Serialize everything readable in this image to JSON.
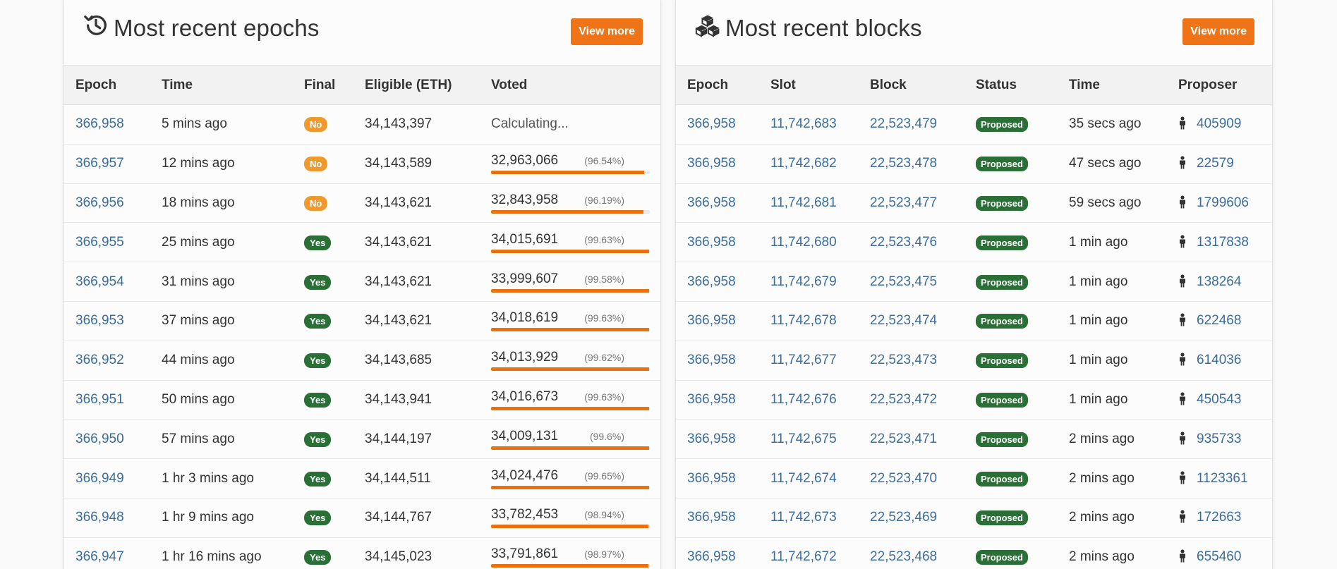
{
  "colors": {
    "accent": "#ef7417",
    "link": "#3a6d9e",
    "badge_yes": "#2a6f35",
    "badge_no": "#f09a2e",
    "progress": "#e7720f"
  },
  "epochs": {
    "title": "Most recent epochs",
    "icon": "history-icon",
    "view_more": "View more",
    "columns": [
      "Epoch",
      "Time",
      "Final",
      "Eligible (ETH)",
      "Voted"
    ],
    "rows": [
      {
        "epoch": "366,958",
        "time": "5 mins ago",
        "final": "No",
        "eligible": "34,143,397",
        "voted": "Calculating...",
        "pct": "",
        "progress": null
      },
      {
        "epoch": "366,957",
        "time": "12 mins ago",
        "final": "No",
        "eligible": "34,143,589",
        "voted": "32,963,066",
        "pct": "(96.54%)",
        "progress": 96.54
      },
      {
        "epoch": "366,956",
        "time": "18 mins ago",
        "final": "No",
        "eligible": "34,143,621",
        "voted": "32,843,958",
        "pct": "(96.19%)",
        "progress": 96.19
      },
      {
        "epoch": "366,955",
        "time": "25 mins ago",
        "final": "Yes",
        "eligible": "34,143,621",
        "voted": "34,015,691",
        "pct": "(99.63%)",
        "progress": 99.63
      },
      {
        "epoch": "366,954",
        "time": "31 mins ago",
        "final": "Yes",
        "eligible": "34,143,621",
        "voted": "33,999,607",
        "pct": "(99.58%)",
        "progress": 99.58
      },
      {
        "epoch": "366,953",
        "time": "37 mins ago",
        "final": "Yes",
        "eligible": "34,143,621",
        "voted": "34,018,619",
        "pct": "(99.63%)",
        "progress": 99.63
      },
      {
        "epoch": "366,952",
        "time": "44 mins ago",
        "final": "Yes",
        "eligible": "34,143,685",
        "voted": "34,013,929",
        "pct": "(99.62%)",
        "progress": 99.62
      },
      {
        "epoch": "366,951",
        "time": "50 mins ago",
        "final": "Yes",
        "eligible": "34,143,941",
        "voted": "34,016,673",
        "pct": "(99.63%)",
        "progress": 99.63
      },
      {
        "epoch": "366,950",
        "time": "57 mins ago",
        "final": "Yes",
        "eligible": "34,144,197",
        "voted": "34,009,131",
        "pct": "(99.6%)",
        "progress": 99.6
      },
      {
        "epoch": "366,949",
        "time": "1 hr 3 mins ago",
        "final": "Yes",
        "eligible": "34,144,511",
        "voted": "34,024,476",
        "pct": "(99.65%)",
        "progress": 99.65
      },
      {
        "epoch": "366,948",
        "time": "1 hr 9 mins ago",
        "final": "Yes",
        "eligible": "34,144,767",
        "voted": "33,782,453",
        "pct": "(98.94%)",
        "progress": 98.94
      },
      {
        "epoch": "366,947",
        "time": "1 hr 16 mins ago",
        "final": "Yes",
        "eligible": "34,145,023",
        "voted": "33,791,861",
        "pct": "(98.97%)",
        "progress": 98.97
      }
    ]
  },
  "blocks": {
    "title": "Most recent blocks",
    "icon": "cubes-icon",
    "view_more": "View more",
    "columns": [
      "Epoch",
      "Slot",
      "Block",
      "Status",
      "Time",
      "Proposer"
    ],
    "rows": [
      {
        "epoch": "366,958",
        "slot": "11,742,683",
        "block": "22,523,479",
        "status": "Proposed",
        "time": "35 secs ago",
        "proposer": "405909"
      },
      {
        "epoch": "366,958",
        "slot": "11,742,682",
        "block": "22,523,478",
        "status": "Proposed",
        "time": "47 secs ago",
        "proposer": "22579"
      },
      {
        "epoch": "366,958",
        "slot": "11,742,681",
        "block": "22,523,477",
        "status": "Proposed",
        "time": "59 secs ago",
        "proposer": "1799606"
      },
      {
        "epoch": "366,958",
        "slot": "11,742,680",
        "block": "22,523,476",
        "status": "Proposed",
        "time": "1 min ago",
        "proposer": "1317838"
      },
      {
        "epoch": "366,958",
        "slot": "11,742,679",
        "block": "22,523,475",
        "status": "Proposed",
        "time": "1 min ago",
        "proposer": "138264"
      },
      {
        "epoch": "366,958",
        "slot": "11,742,678",
        "block": "22,523,474",
        "status": "Proposed",
        "time": "1 min ago",
        "proposer": "622468"
      },
      {
        "epoch": "366,958",
        "slot": "11,742,677",
        "block": "22,523,473",
        "status": "Proposed",
        "time": "1 min ago",
        "proposer": "614036"
      },
      {
        "epoch": "366,958",
        "slot": "11,742,676",
        "block": "22,523,472",
        "status": "Proposed",
        "time": "1 min ago",
        "proposer": "450543"
      },
      {
        "epoch": "366,958",
        "slot": "11,742,675",
        "block": "22,523,471",
        "status": "Proposed",
        "time": "2 mins ago",
        "proposer": "935733"
      },
      {
        "epoch": "366,958",
        "slot": "11,742,674",
        "block": "22,523,470",
        "status": "Proposed",
        "time": "2 mins ago",
        "proposer": "1123361"
      },
      {
        "epoch": "366,958",
        "slot": "11,742,673",
        "block": "22,523,469",
        "status": "Proposed",
        "time": "2 mins ago",
        "proposer": "172663"
      },
      {
        "epoch": "366,958",
        "slot": "11,742,672",
        "block": "22,523,468",
        "status": "Proposed",
        "time": "2 mins ago",
        "proposer": "655460"
      }
    ]
  }
}
